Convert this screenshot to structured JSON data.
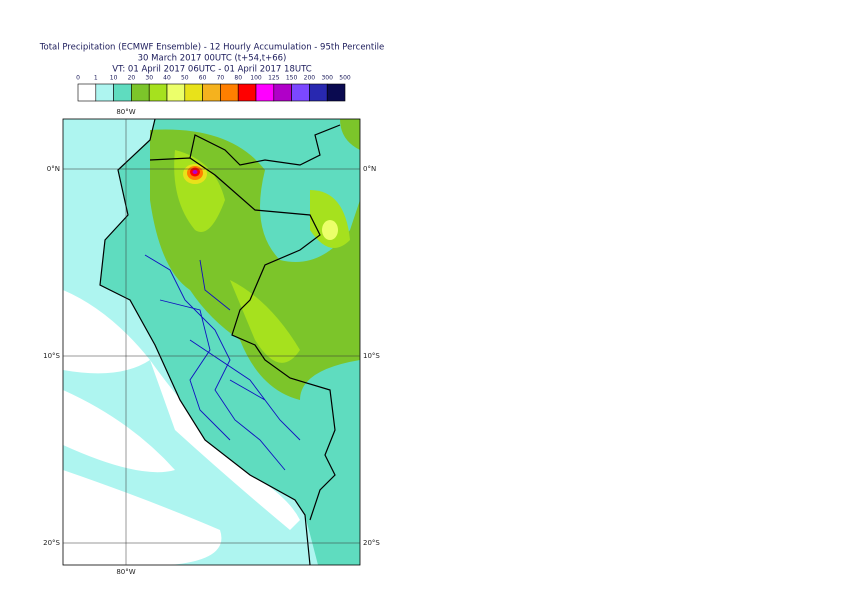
{
  "header": {
    "title": "Total Precipitation (ECMWF Ensemble) - 12 Hourly Accumulation - 95th Percentile",
    "run": "30 March 2017 00UTC (t+54,t+66)",
    "valid": "VT: 01 April 2017 06UTC - 01 April 2017 18UTC"
  },
  "legend": {
    "labels": [
      "0",
      "1",
      "10",
      "20",
      "30",
      "40",
      "50",
      "60",
      "70",
      "80",
      "100",
      "125",
      "150",
      "200",
      "300",
      "500"
    ],
    "colors": [
      "#ffffff",
      "#aef5f0",
      "#5fdcbf",
      "#7cc52a",
      "#a6e11e",
      "#ecff6a",
      "#e8e21a",
      "#f5b21e",
      "#ff7f00",
      "#ff0000",
      "#ff00ff",
      "#b000c8",
      "#7b48ff",
      "#2828b0",
      "#0a0a50"
    ]
  },
  "map": {
    "lat_labels": [
      "0°N",
      "10°S",
      "20°S"
    ],
    "lon_label": "80°W"
  }
}
